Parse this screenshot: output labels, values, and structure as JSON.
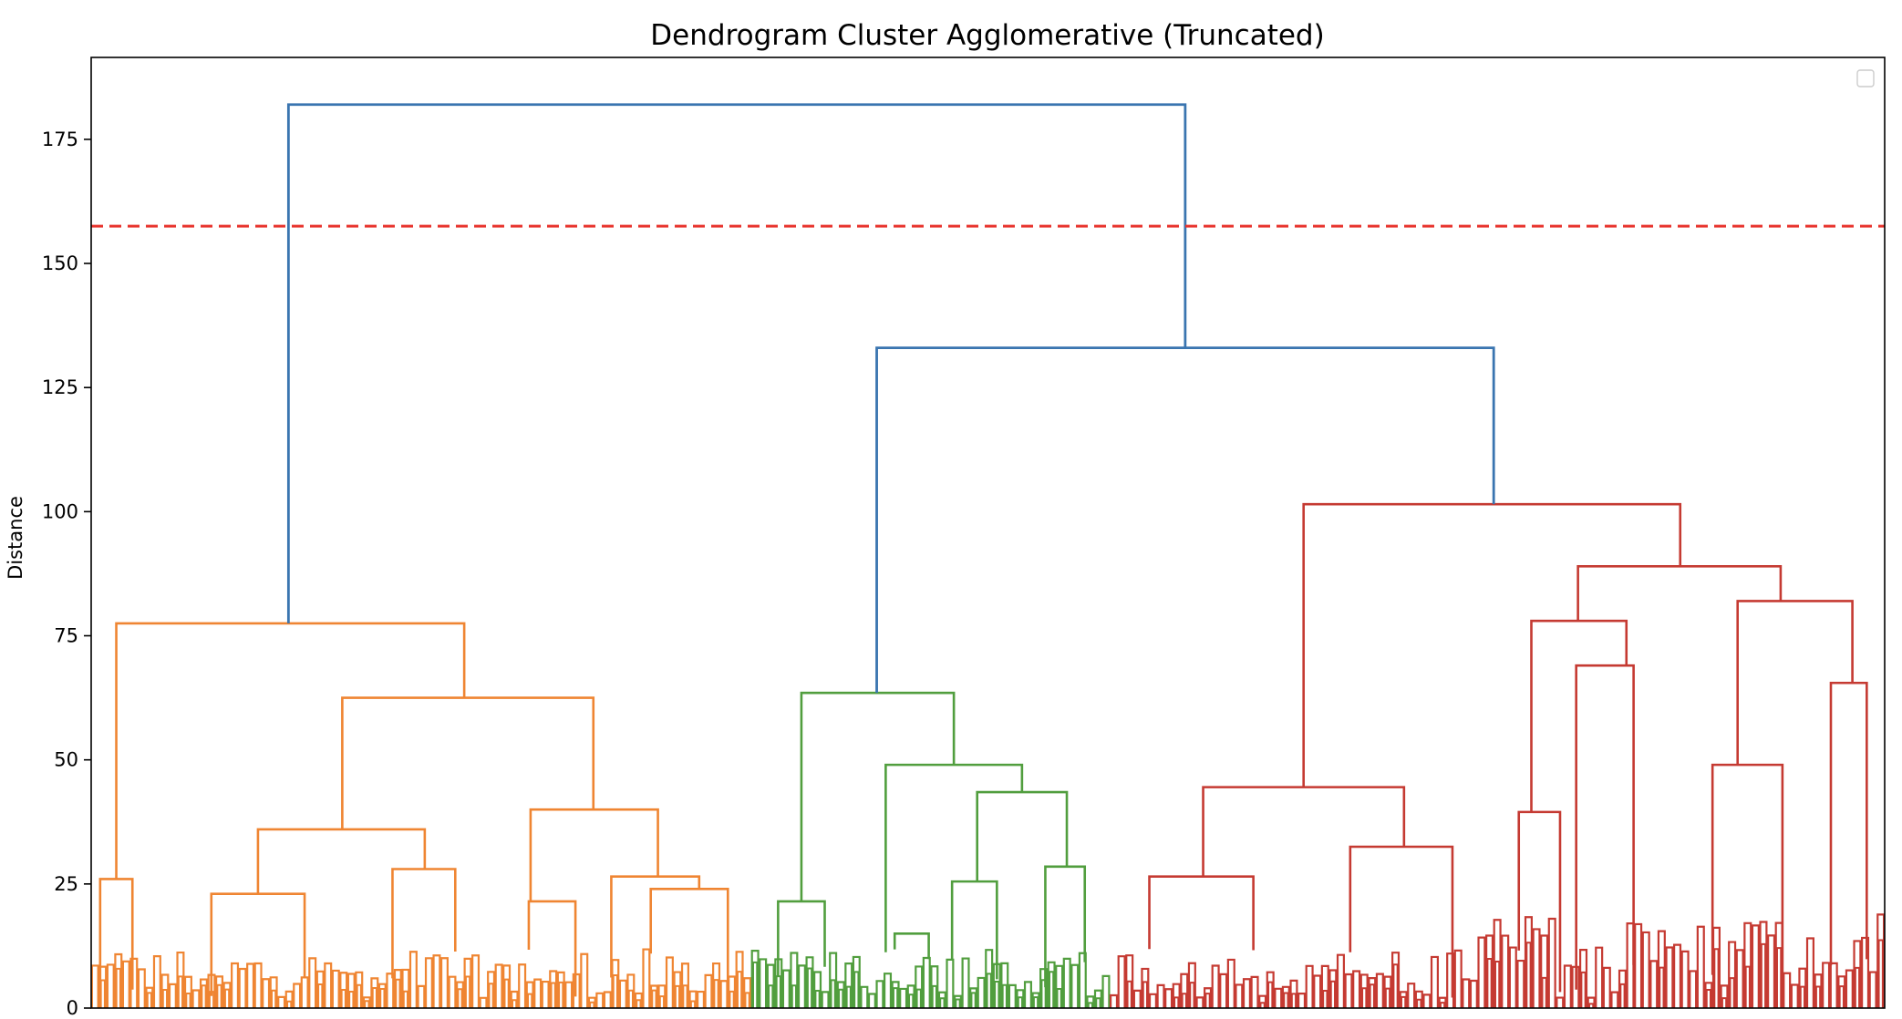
{
  "chart_data": {
    "type": "dendrogram",
    "title": "Dendrogram Cluster Agglomerative (Truncated)",
    "xlabel": "",
    "ylabel": "Distance",
    "ylim": [
      0,
      191.5
    ],
    "yticks": [
      0,
      25,
      50,
      75,
      100,
      125,
      150,
      175
    ],
    "threshold": 157.5,
    "legend": {
      "placement": "top-right",
      "entries": []
    },
    "colors": {
      "above_threshold": "#3a75b0",
      "threshold_line": "#e8352e",
      "clusters": [
        "#ef8532",
        "#519e3e",
        "#c53a32"
      ]
    },
    "top_links": [
      {
        "x": [
          0.11,
          0.61
        ],
        "y": 182.0,
        "left_height": 77.5,
        "right_height": 133.0
      },
      {
        "x": [
          0.438,
          0.782
        ],
        "y": 133.0,
        "left_height": 63.5,
        "right_height": 101.5
      }
    ],
    "clusters": [
      {
        "id": "cluster-1",
        "color": "#ef8532",
        "x_range": [
          0.0,
          0.368
        ],
        "links": [
          {
            "x": [
              0.014,
              0.208
            ],
            "y": 77.5
          },
          {
            "x": [
              0.14,
              0.28
            ],
            "y": 62.5
          },
          {
            "x": [
              0.093,
              0.186
            ],
            "y": 36.0
          },
          {
            "x": [
              0.245,
              0.316
            ],
            "y": 40.0
          },
          {
            "x": [
              0.067,
              0.119
            ],
            "y": 23.0
          },
          {
            "x": [
              0.168,
              0.203
            ],
            "y": 28.0
          },
          {
            "x": [
              0.244,
              0.27
            ],
            "y": 21.5
          },
          {
            "x": [
              0.29,
              0.339
            ],
            "y": 26.5
          },
          {
            "x": [
              0.005,
              0.023
            ],
            "y": 26.0
          },
          {
            "x": [
              0.312,
              0.355
            ],
            "y": 24.0
          }
        ]
      },
      {
        "id": "cluster-2",
        "color": "#519e3e",
        "x_range": [
          0.368,
          0.568
        ],
        "links": [
          {
            "x": [
              0.396,
              0.481
            ],
            "y": 63.5
          },
          {
            "x": [
              0.443,
              0.519
            ],
            "y": 49.0
          },
          {
            "x": [
              0.494,
              0.544
            ],
            "y": 43.5
          },
          {
            "x": [
              0.383,
              0.409
            ],
            "y": 21.5
          },
          {
            "x": [
              0.448,
              0.467
            ],
            "y": 15.0
          },
          {
            "x": [
              0.48,
              0.505
            ],
            "y": 25.5
          },
          {
            "x": [
              0.532,
              0.554
            ],
            "y": 28.5
          }
        ]
      },
      {
        "id": "cluster-3",
        "color": "#c53a32",
        "x_range": [
          0.568,
          1.0
        ],
        "links": [
          {
            "x": [
              0.676,
              0.886
            ],
            "y": 101.5
          },
          {
            "x": [
              0.829,
              0.942
            ],
            "y": 89.0
          },
          {
            "x": [
              0.918,
              0.982
            ],
            "y": 82.0
          },
          {
            "x": [
              0.62,
              0.732
            ],
            "y": 44.5
          },
          {
            "x": [
              0.803,
              0.856
            ],
            "y": 78.0
          },
          {
            "x": [
              0.828,
              0.86
            ],
            "y": 69.0
          },
          {
            "x": [
              0.904,
              0.943
            ],
            "y": 49.0
          },
          {
            "x": [
              0.59,
              0.648
            ],
            "y": 26.5
          },
          {
            "x": [
              0.702,
              0.759
            ],
            "y": 32.5
          },
          {
            "x": [
              0.796,
              0.819
            ],
            "y": 39.5
          },
          {
            "x": [
              0.97,
              0.99
            ],
            "y": 65.5
          }
        ]
      }
    ]
  }
}
